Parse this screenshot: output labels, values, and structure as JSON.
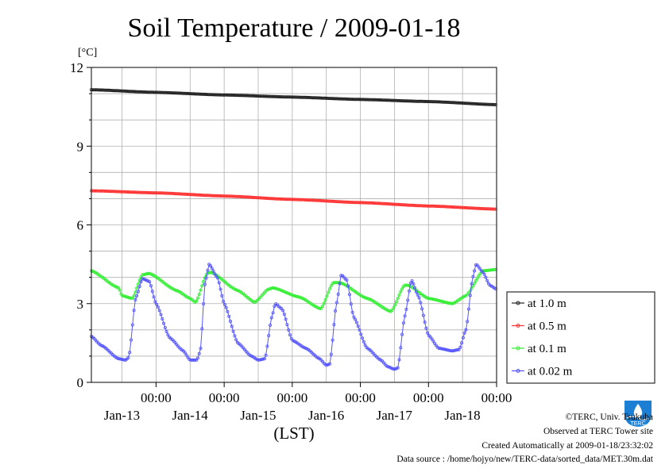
{
  "title": "Soil Temperature / 2009-01-18",
  "unit_label": "[°C]",
  "xlabel": "(LST)",
  "footer": {
    "copyright": "©TERC, Univ. Tsukuba",
    "site": "Observed at TERC Tower site",
    "created": "Created Automatically at 2009-01-18/23:32:02",
    "source": "Data source : /home/hojyo/new/TERC-data/sorted_data/MET.30m.dat"
  },
  "logo_text": "TERC",
  "chart_data": {
    "type": "line",
    "title": "Soil Temperature / 2009-01-18",
    "xlabel": "(LST)",
    "ylabel": "[°C]",
    "ylim": [
      0,
      12
    ],
    "yticks": [
      "0",
      "3",
      "6",
      "9",
      "12"
    ],
    "xlim_days": [
      -0.95,
      5.0
    ],
    "day_ticks": [
      {
        "time": "00:00",
        "date": "Jan-13"
      },
      {
        "time": "00:00",
        "date": "Jan-14"
      },
      {
        "time": "00:00",
        "date": "Jan-15"
      },
      {
        "time": "00:00",
        "date": "Jan-16"
      },
      {
        "time": "00:00",
        "date": "Jan-17"
      },
      {
        "time": "00:00",
        "date": "Jan-18"
      }
    ],
    "grid": true,
    "legend_position": "right",
    "series": [
      {
        "name": "at 1.0 m",
        "color": "#222222",
        "points": [
          [
            -0.95,
            11.15
          ],
          [
            0.0,
            11.05
          ],
          [
            1.0,
            10.95
          ],
          [
            2.0,
            10.87
          ],
          [
            3.0,
            10.78
          ],
          [
            4.0,
            10.7
          ],
          [
            5.0,
            10.58
          ]
        ]
      },
      {
        "name": "at 0.5 m",
        "color": "#ff3333",
        "points": [
          [
            -0.95,
            7.3
          ],
          [
            0.0,
            7.22
          ],
          [
            1.0,
            7.1
          ],
          [
            2.0,
            6.97
          ],
          [
            3.0,
            6.85
          ],
          [
            4.0,
            6.72
          ],
          [
            5.0,
            6.6
          ]
        ]
      },
      {
        "name": "at 0.1 m",
        "color": "#33ee33",
        "points": [
          [
            -0.95,
            4.25
          ],
          [
            -0.55,
            3.6
          ],
          [
            -0.5,
            3.3
          ],
          [
            -0.35,
            3.2
          ],
          [
            -0.2,
            4.1
          ],
          [
            -0.1,
            4.15
          ],
          [
            0.3,
            3.5
          ],
          [
            0.5,
            3.2
          ],
          [
            0.58,
            3.05
          ],
          [
            0.75,
            4.15
          ],
          [
            0.8,
            4.2
          ],
          [
            1.2,
            3.5
          ],
          [
            1.45,
            3.05
          ],
          [
            1.65,
            3.55
          ],
          [
            1.72,
            3.6
          ],
          [
            2.1,
            3.25
          ],
          [
            2.42,
            2.8
          ],
          [
            2.6,
            3.8
          ],
          [
            2.7,
            3.8
          ],
          [
            3.1,
            3.2
          ],
          [
            3.45,
            2.7
          ],
          [
            3.65,
            3.7
          ],
          [
            3.7,
            3.7
          ],
          [
            4.0,
            3.2
          ],
          [
            4.35,
            3.0
          ],
          [
            4.55,
            3.3
          ],
          [
            4.8,
            4.25
          ],
          [
            5.0,
            4.3
          ]
        ]
      },
      {
        "name": "at 0.02 m",
        "color": "#5555ff",
        "points": [
          [
            -0.95,
            1.75
          ],
          [
            -0.8,
            1.4
          ],
          [
            -0.55,
            0.9
          ],
          [
            -0.45,
            0.85
          ],
          [
            -0.4,
            0.95
          ],
          [
            -0.3,
            3.2
          ],
          [
            -0.2,
            3.95
          ],
          [
            -0.1,
            3.85
          ],
          [
            0.0,
            3.0
          ],
          [
            0.2,
            1.7
          ],
          [
            0.4,
            1.2
          ],
          [
            0.5,
            0.85
          ],
          [
            0.6,
            0.85
          ],
          [
            0.65,
            1.2
          ],
          [
            0.72,
            3.8
          ],
          [
            0.78,
            4.5
          ],
          [
            0.9,
            4.0
          ],
          [
            1.0,
            3.0
          ],
          [
            1.2,
            1.5
          ],
          [
            1.4,
            1.0
          ],
          [
            1.5,
            0.85
          ],
          [
            1.6,
            0.9
          ],
          [
            1.7,
            2.5
          ],
          [
            1.75,
            3.0
          ],
          [
            1.85,
            2.8
          ],
          [
            2.0,
            1.6
          ],
          [
            2.2,
            1.3
          ],
          [
            2.4,
            0.9
          ],
          [
            2.5,
            0.65
          ],
          [
            2.55,
            0.7
          ],
          [
            2.65,
            3.0
          ],
          [
            2.72,
            4.1
          ],
          [
            2.8,
            3.9
          ],
          [
            2.9,
            2.5
          ],
          [
            3.1,
            1.3
          ],
          [
            3.3,
            0.85
          ],
          [
            3.4,
            0.6
          ],
          [
            3.5,
            0.5
          ],
          [
            3.55,
            0.55
          ],
          [
            3.65,
            2.5
          ],
          [
            3.75,
            3.9
          ],
          [
            3.85,
            3.3
          ],
          [
            4.0,
            1.8
          ],
          [
            4.15,
            1.3
          ],
          [
            4.35,
            1.2
          ],
          [
            4.45,
            1.25
          ],
          [
            4.55,
            2.0
          ],
          [
            4.65,
            4.0
          ],
          [
            4.7,
            4.5
          ],
          [
            4.8,
            4.2
          ],
          [
            4.9,
            3.7
          ],
          [
            5.0,
            3.55
          ]
        ]
      }
    ]
  }
}
